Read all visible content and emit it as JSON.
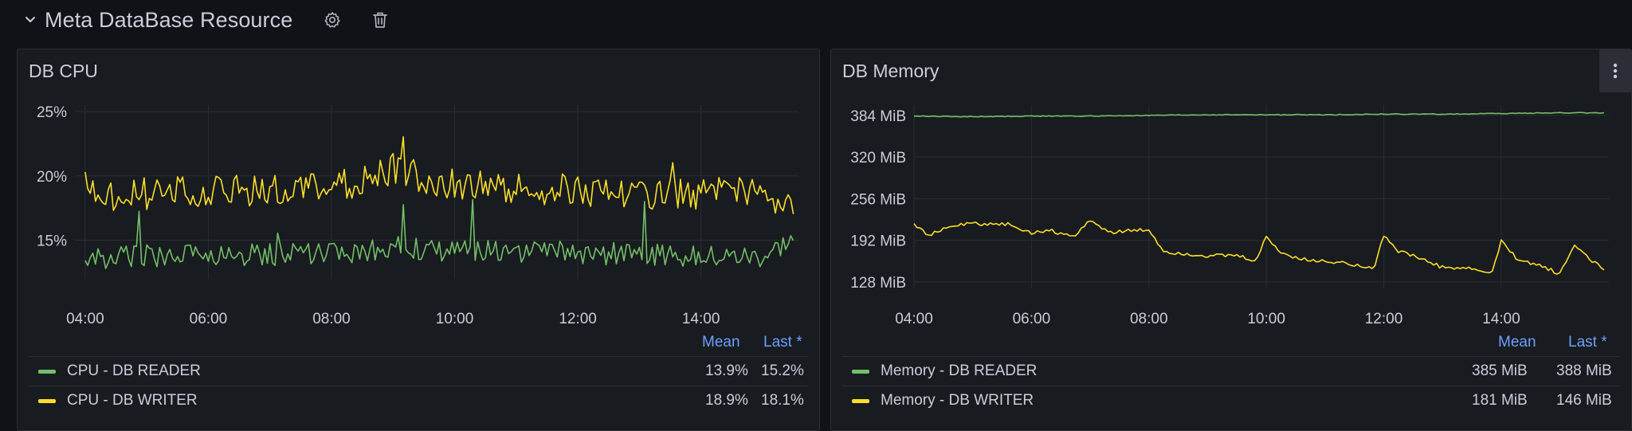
{
  "row": {
    "title": "Meta DataBase Resource",
    "icons": [
      "chevron-down-icon",
      "gear-icon",
      "trash-icon"
    ]
  },
  "colors": {
    "reader": "#73bf69",
    "writer": "#fade2a",
    "legend_header": "#6e9fff",
    "grid": "#2a2d33",
    "axis_text": "#ccccdc"
  },
  "panels": {
    "cpu": {
      "title": "DB CPU",
      "legend": {
        "mean_label": "Mean",
        "last_label": "Last *",
        "rows": [
          {
            "name": "CPU - DB READER",
            "mean": "13.9%",
            "last": "15.2%"
          },
          {
            "name": "CPU - DB WRITER",
            "mean": "18.9%",
            "last": "18.1%"
          }
        ]
      }
    },
    "memory": {
      "title": "DB Memory",
      "menu_icon": "kebab-menu-icon",
      "legend": {
        "mean_label": "Mean",
        "last_label": "Last *",
        "rows": [
          {
            "name": "Memory - DB READER",
            "mean": "385 MiB",
            "last": "388 MiB"
          },
          {
            "name": "Memory - DB WRITER",
            "mean": "181 MiB",
            "last": "146 MiB"
          }
        ]
      }
    }
  },
  "chart_data": [
    {
      "type": "line",
      "title": "DB CPU",
      "x_range": [
        "03:50",
        "15:35"
      ],
      "x_ticks": [
        "04:00",
        "06:00",
        "08:00",
        "10:00",
        "12:00",
        "14:00"
      ],
      "y_ticks": [
        "15%",
        "20%",
        "25%"
      ],
      "ylim": [
        12,
        25
      ],
      "grid": true,
      "legend_placement": "bottom",
      "series": [
        {
          "name": "CPU - DB READER",
          "color": "#73bf69",
          "x": [
            "04:00",
            "05:00",
            "06:00",
            "07:00",
            "08:00",
            "09:00",
            "10:00",
            "11:00",
            "12:00",
            "13:00",
            "14:00",
            "15:00",
            "15:30"
          ],
          "values": [
            13.6,
            13.8,
            13.9,
            13.9,
            14.0,
            14.4,
            14.2,
            14.1,
            14.0,
            13.9,
            13.8,
            13.8,
            15.2
          ]
        },
        {
          "name": "CPU - DB WRITER",
          "color": "#fade2a",
          "x": [
            "04:00",
            "05:00",
            "06:00",
            "07:00",
            "08:00",
            "09:00",
            "10:00",
            "11:00",
            "12:00",
            "13:00",
            "14:00",
            "15:00",
            "15:30"
          ],
          "values": [
            18.6,
            18.6,
            18.7,
            18.8,
            18.9,
            20.5,
            19.3,
            18.9,
            18.9,
            18.7,
            18.6,
            18.6,
            18.1
          ]
        }
      ]
    },
    {
      "type": "line",
      "title": "DB Memory",
      "x_range": [
        "04:00",
        "15:50"
      ],
      "x_ticks": [
        "04:00",
        "06:00",
        "08:00",
        "10:00",
        "12:00",
        "14:00"
      ],
      "y_ticks": [
        "128 MiB",
        "192 MiB",
        "256 MiB",
        "320 MiB",
        "384 MiB"
      ],
      "ylim": [
        118,
        390
      ],
      "grid": true,
      "legend_placement": "bottom",
      "series": [
        {
          "name": "Memory - DB READER",
          "color": "#73bf69",
          "x": [
            "04:00",
            "05:00",
            "06:00",
            "07:00",
            "08:00",
            "09:00",
            "10:00",
            "11:00",
            "12:00",
            "13:00",
            "14:00",
            "15:00",
            "15:45"
          ],
          "values": [
            383,
            382,
            383,
            383,
            384,
            385,
            385,
            385,
            386,
            386,
            387,
            388,
            388
          ]
        },
        {
          "name": "Memory - DB WRITER",
          "color": "#fade2a",
          "x": [
            "04:00",
            "04:15",
            "04:40",
            "05:00",
            "05:40",
            "06:00",
            "06:15",
            "06:45",
            "07:00",
            "07:20",
            "07:40",
            "08:00",
            "08:15",
            "08:30",
            "09:00",
            "09:30",
            "09:50",
            "10:00",
            "10:15",
            "10:45",
            "11:00",
            "11:30",
            "11:50",
            "12:00",
            "12:15",
            "12:30",
            "13:00",
            "13:30",
            "13:50",
            "14:00",
            "14:15",
            "14:45",
            "15:00",
            "15:15",
            "15:35",
            "15:45"
          ],
          "values": [
            218,
            200,
            215,
            218,
            216,
            202,
            208,
            198,
            224,
            204,
            206,
            208,
            175,
            172,
            168,
            168,
            160,
            198,
            172,
            160,
            160,
            155,
            150,
            200,
            175,
            168,
            150,
            148,
            140,
            190,
            165,
            150,
            140,
            185,
            158,
            146
          ]
        }
      ]
    }
  ]
}
